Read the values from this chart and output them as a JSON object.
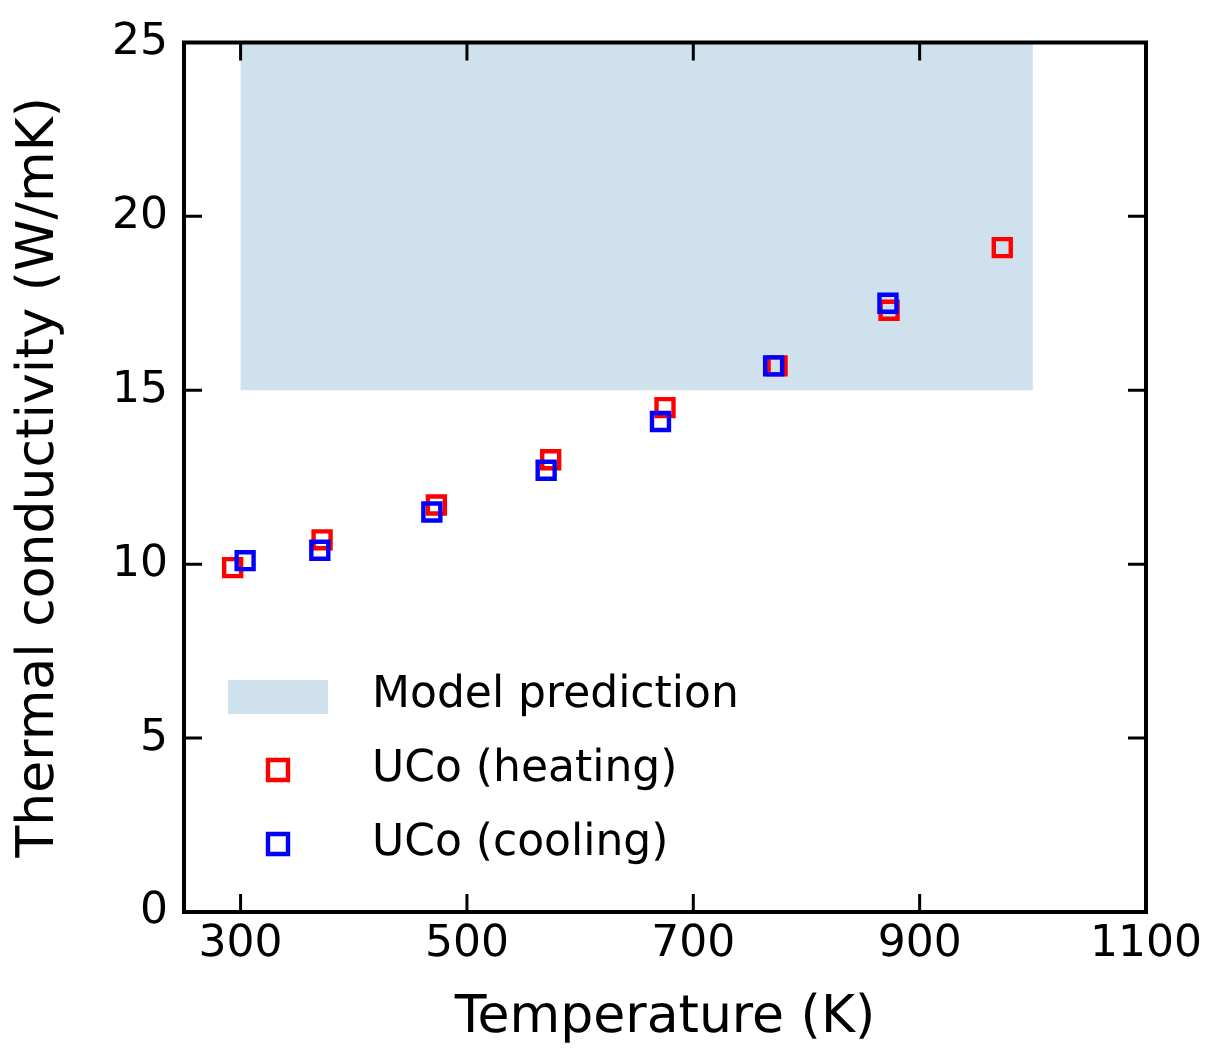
{
  "chart_data": {
    "type": "scatter",
    "xlabel": "Temperature (K)",
    "ylabel": "Thermal conductivity (W/mK)",
    "xlim": [
      250,
      1100
    ],
    "xticks": [
      300,
      500,
      700,
      900,
      1100
    ],
    "ylim": [
      0,
      25
    ],
    "yticks": [
      0,
      5,
      10,
      15,
      20,
      25
    ],
    "grid": false,
    "legend": "bottom left",
    "series": [
      {
        "type": "area",
        "name": "Model prediction",
        "color": "#d0e1ee",
        "x": [
          300,
          1000
        ],
        "values": [
          null,
          null
        ],
        "lower": [
          15,
          15
        ],
        "upper": [
          25,
          25
        ],
        "marker": "none"
      },
      {
        "name": "UCo (heating)",
        "color": "#ff0000",
        "marker": "square",
        "x": [
          293,
          372,
          473,
          574,
          675,
          774,
          873,
          973
        ],
        "values": [
          9.9,
          10.7,
          11.7,
          13.0,
          14.5,
          15.7,
          17.3,
          19.1
        ]
      },
      {
        "name": "UCo (cooling)",
        "color": "#0000ff",
        "marker": "square",
        "x": [
          304,
          370,
          469,
          570,
          671,
          771,
          872
        ],
        "values": [
          10.1,
          10.4,
          11.5,
          12.7,
          14.1,
          15.7,
          17.5
        ]
      }
    ]
  }
}
